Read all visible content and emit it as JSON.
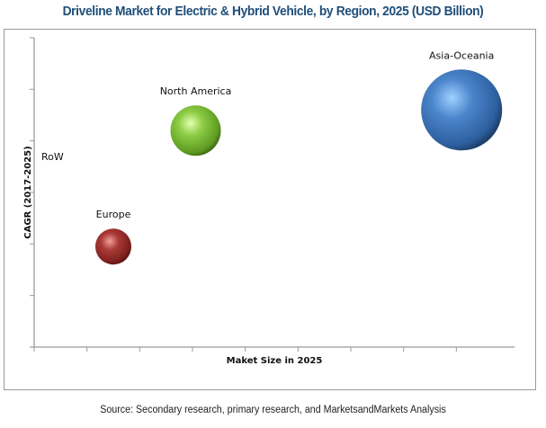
{
  "chart_data": {
    "type": "scatter",
    "subtype": "bubble",
    "title": "Driveline Market for Electric & Hybrid Vehicle, by Region, 2025 (USD Billion)",
    "xlabel": "Maket Size in 2025",
    "ylabel": "CAGR (2017-2025)",
    "x_ticks": 9,
    "y_ticks": 7,
    "xlim": [
      0,
      9
    ],
    "ylim": [
      0,
      6
    ],
    "grid": false,
    "legend": "none",
    "series": [
      {
        "name": "Asia-Oceania",
        "x": 8.1,
        "y": 4.6,
        "size": 45,
        "color": "#3f74b8"
      },
      {
        "name": "North America",
        "x": 3.06,
        "y": 4.2,
        "size": 28,
        "color": "#84c63a"
      },
      {
        "name": "RoW",
        "x": 0.0,
        "y": 3.7,
        "size": 0,
        "color": "#ffffff"
      },
      {
        "name": "Europe",
        "x": 1.5,
        "y": 1.95,
        "size": 20,
        "color": "#a3302f"
      }
    ]
  },
  "source": "Source: Secondary research, primary research, and MarketsandMarkets Analysis",
  "colors": {
    "title": "#1f4e79",
    "axis": "#9a9a9a"
  }
}
